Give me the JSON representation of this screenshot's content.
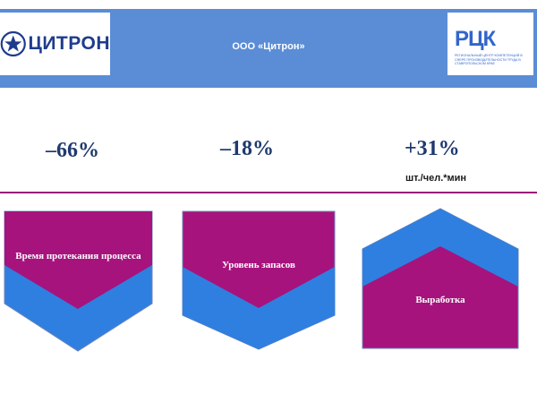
{
  "header": {
    "company_logo_text": "ЦИТРОН",
    "title": "ООО «Цитрон»",
    "partner_logo_name": "РЦК",
    "partner_logo_subtitle": "Региональный центр компетенций в сфере производительности труда в Ставропольском крае"
  },
  "metrics": [
    {
      "value": "–66%"
    },
    {
      "value": "–18%"
    },
    {
      "value": "+31%",
      "unit": "шт./чел.*мин"
    }
  ],
  "shapes": [
    {
      "label": "Время протекания процесса",
      "direction": "down"
    },
    {
      "label": "Уровень запасов",
      "direction": "down"
    },
    {
      "label": "Выработка",
      "direction": "up"
    }
  ],
  "colors": {
    "header_bg": "#5b8dd6",
    "magenta": "#a6137d",
    "blue": "#2f7fe0",
    "metric_text": "#1f3a6e",
    "divider": "#9c1278"
  }
}
